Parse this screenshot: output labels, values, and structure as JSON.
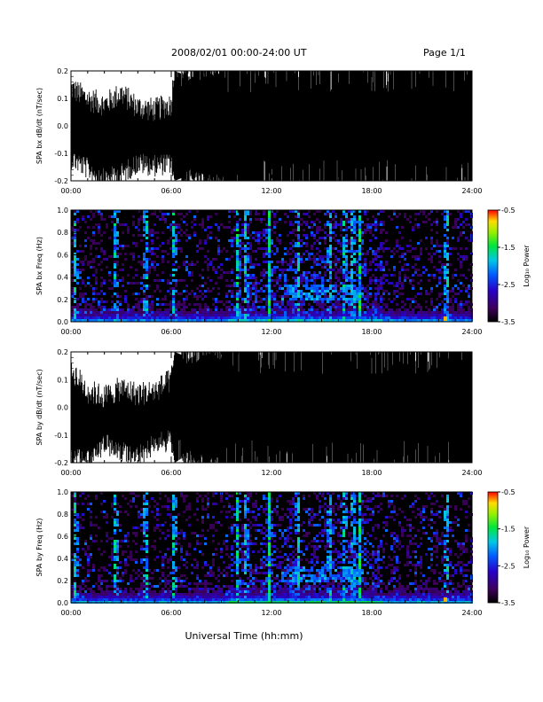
{
  "header": {
    "title": "2008/02/01   00:00-24:00 UT",
    "page": "Page 1/1"
  },
  "xaxis": {
    "label": "Universal Time (hh:mm)",
    "ticks": [
      "00:00",
      "06:00",
      "12:00",
      "18:00",
      "24:00"
    ]
  },
  "colorbar": {
    "label": "Log₁₀ Power",
    "ticks": [
      "-0.5",
      "-1.5",
      "-2.5",
      "-3.5"
    ],
    "range": [
      -3.5,
      -0.5
    ]
  },
  "chart_data": [
    {
      "type": "line",
      "ylabel": "SPA bx dB/dt (nT/sec)",
      "xlim": [
        0,
        24
      ],
      "ylim": [
        -0.2,
        0.2
      ],
      "yticks": [
        "-0.2",
        "-0.1",
        "0.0",
        "0.1",
        "0.2"
      ],
      "series": [
        {
          "values_note_excluded": false
        }
      ],
      "envelope": {
        "x": [
          0,
          1,
          2,
          3,
          4,
          5,
          6,
          6.2,
          7,
          8,
          9,
          10,
          11,
          12,
          13,
          14,
          15,
          16,
          17,
          18,
          19,
          20,
          21,
          22,
          23,
          24
        ],
        "upper": [
          0.12,
          0.08,
          0.06,
          0.1,
          0.05,
          0.04,
          0.06,
          0.2,
          0.18,
          0.2,
          0.2,
          0.2,
          0.2,
          0.2,
          0.2,
          0.2,
          0.2,
          0.2,
          0.2,
          0.2,
          0.2,
          0.2,
          0.2,
          0.2,
          0.2,
          0.2
        ],
        "lower": [
          -0.1,
          -0.14,
          -0.18,
          -0.16,
          -0.12,
          -0.13,
          -0.12,
          -0.2,
          -0.18,
          -0.2,
          -0.2,
          -0.2,
          -0.2,
          -0.2,
          -0.2,
          -0.2,
          -0.2,
          -0.2,
          -0.2,
          -0.2,
          -0.2,
          -0.2,
          -0.2,
          -0.2,
          -0.2,
          -0.2
        ]
      }
    },
    {
      "type": "heatmap",
      "ylabel": "SPA bx Freq (Hz)",
      "xlim": [
        0,
        24
      ],
      "ylim": [
        0,
        1
      ],
      "yticks": [
        "0.0",
        "0.2",
        "0.4",
        "0.6",
        "0.8",
        "1.0"
      ],
      "bright_hours": [
        0.2,
        2.6,
        4.4,
        6.1,
        9.9,
        10.4,
        11.8,
        13.5,
        15.4,
        16.3,
        16.8,
        17.2,
        22.4
      ],
      "active_band": {
        "x": [
          12.5,
          17.5
        ],
        "y": [
          0.2,
          0.35
        ]
      }
    },
    {
      "type": "line",
      "ylabel": "SPA by dB/dt (nT/sec)",
      "xlim": [
        0,
        24
      ],
      "ylim": [
        -0.2,
        0.2
      ],
      "yticks": [
        "-0.2",
        "-0.1",
        "0.0",
        "0.1",
        "0.2"
      ],
      "envelope": {
        "x": [
          0,
          1,
          2,
          3,
          4,
          5,
          6,
          6.2,
          7,
          8,
          9,
          10,
          11,
          12,
          13,
          14,
          15,
          16,
          17,
          18,
          19,
          20,
          21,
          22,
          23,
          24
        ],
        "upper": [
          0.12,
          0.04,
          0.02,
          0.05,
          0.03,
          0.04,
          0.08,
          0.2,
          0.18,
          0.2,
          0.2,
          0.2,
          0.2,
          0.2,
          0.2,
          0.2,
          0.2,
          0.2,
          0.2,
          0.2,
          0.2,
          0.2,
          0.2,
          0.2,
          0.2,
          0.2
        ],
        "lower": [
          -0.16,
          -0.18,
          -0.12,
          -0.14,
          -0.16,
          -0.12,
          -0.1,
          -0.2,
          -0.17,
          -0.2,
          -0.2,
          -0.2,
          -0.2,
          -0.2,
          -0.2,
          -0.2,
          -0.2,
          -0.2,
          -0.2,
          -0.2,
          -0.2,
          -0.2,
          -0.2,
          -0.2,
          -0.2,
          -0.2
        ]
      }
    },
    {
      "type": "heatmap",
      "ylabel": "SPA by Freq (Hz)",
      "xlim": [
        0,
        24
      ],
      "ylim": [
        0,
        1
      ],
      "yticks": [
        "0.0",
        "0.2",
        "0.4",
        "0.6",
        "0.8",
        "1.0"
      ],
      "bright_hours": [
        0.2,
        2.6,
        4.4,
        6.1,
        9.9,
        10.4,
        11.8,
        13.5,
        15.4,
        16.3,
        16.8,
        17.2,
        22.4
      ],
      "active_band": {
        "x": [
          12.5,
          17.5
        ],
        "y": [
          0.2,
          0.35
        ]
      }
    }
  ]
}
